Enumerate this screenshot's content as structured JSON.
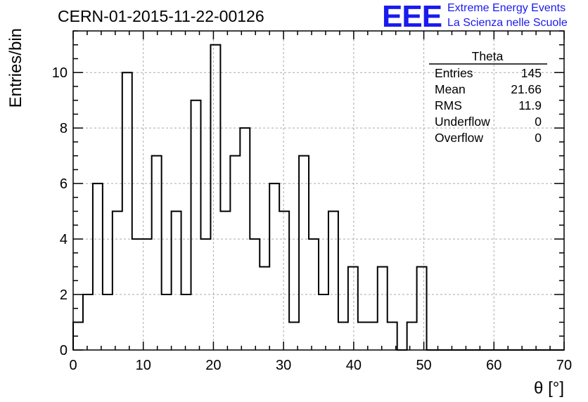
{
  "page": {
    "title": "CERN-01-2015-11-22-00126",
    "logo": {
      "mark": "EEE",
      "line1": "Extreme Energy Events",
      "line2": "La Scienza nelle Scuole",
      "color": "#1a1aee"
    }
  },
  "stats_box": {
    "name": "Theta",
    "rows": [
      {
        "label": "Entries",
        "value": "145"
      },
      {
        "label": "Mean",
        "value": "21.66"
      },
      {
        "label": "RMS",
        "value": "11.9"
      },
      {
        "label": "Underflow",
        "value": "0"
      },
      {
        "label": "Overflow",
        "value": "0"
      }
    ]
  },
  "chart_data": {
    "type": "histogram",
    "title": "CERN-01-2015-11-22-00126",
    "xlabel": "θ [°]",
    "ylabel": "Entries/bin",
    "xlim": [
      0,
      70
    ],
    "ylim": [
      0,
      11.5
    ],
    "x_ticks": [
      0,
      10,
      20,
      30,
      40,
      50,
      60,
      70
    ],
    "y_ticks": [
      0,
      2,
      4,
      6,
      8,
      10
    ],
    "grid": true,
    "bin_width": 1.4,
    "bin_edges_start": 0,
    "values": [
      1,
      2,
      6,
      2,
      5,
      10,
      4,
      4,
      7,
      2,
      5,
      2,
      9,
      4,
      11,
      5,
      7,
      8,
      4,
      3,
      6,
      5,
      1,
      7,
      4,
      2,
      5,
      1,
      3,
      1,
      1,
      3,
      1,
      0,
      1,
      3,
      0,
      0,
      0,
      0,
      0,
      0,
      0,
      0,
      0,
      0,
      0,
      0,
      0,
      0
    ]
  }
}
